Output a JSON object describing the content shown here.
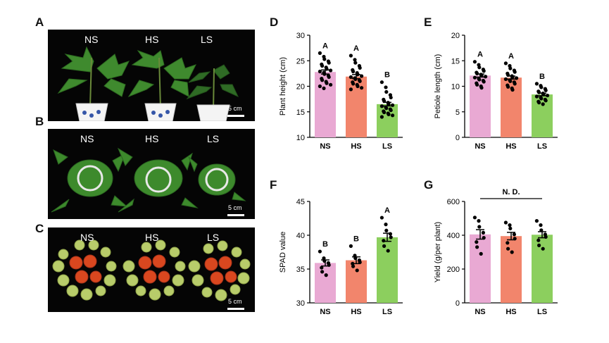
{
  "panel_labels": [
    "A",
    "B",
    "C",
    "D",
    "E",
    "F",
    "G"
  ],
  "photos": [
    {
      "id": "A",
      "treatments": [
        "NS",
        "HS",
        "LS"
      ],
      "scale_label": "5 cm"
    },
    {
      "id": "B",
      "treatments": [
        "NS",
        "HS",
        "LS"
      ],
      "scale_label": "5 cm"
    },
    {
      "id": "C",
      "treatments": [
        "NS",
        "HS",
        "LS"
      ],
      "scale_label": "5 cm"
    }
  ],
  "colors": {
    "NS": "#e9a9d3",
    "HS": "#f2856c",
    "LS": "#8ccf5e",
    "photo_bg": "#050505",
    "leaf": "#3f8a2e",
    "fruit_red": "#d9471f",
    "fruit_green": "#b8cc6a"
  },
  "chart_data": [
    {
      "id": "D",
      "type": "bar",
      "categories": [
        "NS",
        "HS",
        "LS"
      ],
      "values": [
        22.8,
        21.9,
        16.5
      ],
      "errors": [
        0.4,
        0.4,
        0.35
      ],
      "letters": [
        "A",
        "A",
        "B"
      ],
      "ylabel": "Plant height (cm)",
      "ylim": [
        10,
        30
      ],
      "yticks": [
        10,
        15,
        20,
        25,
        30
      ],
      "points": [
        [
          26.5,
          25.8,
          25.3,
          24.9,
          24.6,
          24.3,
          24.0,
          23.7,
          23.4,
          23.1,
          22.9,
          22.7,
          22.4,
          22.1,
          21.8,
          21.5,
          21.2,
          20.9,
          20.6,
          20.3,
          20.0,
          19.6
        ],
        [
          26.0,
          25.2,
          24.6,
          24.0,
          23.6,
          23.2,
          22.9,
          22.6,
          22.3,
          22.0,
          21.8,
          21.6,
          21.4,
          21.2,
          21.0,
          20.8,
          20.5,
          20.3,
          20.0,
          19.7,
          19.4
        ],
        [
          20.8,
          19.8,
          18.9,
          18.3,
          17.8,
          17.4,
          17.1,
          16.8,
          16.5,
          16.3,
          16.1,
          15.9,
          15.7,
          15.5,
          15.3,
          15.1,
          14.9,
          14.7,
          14.5,
          14.3,
          14.0
        ]
      ]
    },
    {
      "id": "E",
      "type": "bar",
      "categories": [
        "NS",
        "HS",
        "LS"
      ],
      "values": [
        12.1,
        11.7,
        8.4
      ],
      "errors": [
        0.3,
        0.3,
        0.25
      ],
      "letters": [
        "A",
        "A",
        "B"
      ],
      "ylabel": "Petiole length (cm)",
      "ylim": [
        0,
        20
      ],
      "yticks": [
        0,
        5,
        10,
        15,
        20
      ],
      "points": [
        [
          14.8,
          14.2,
          13.7,
          13.3,
          13.0,
          12.7,
          12.5,
          12.3,
          12.1,
          11.9,
          11.7,
          11.5,
          11.3,
          11.1,
          10.9,
          10.6,
          10.3,
          10.0,
          9.7
        ],
        [
          14.5,
          14.0,
          13.5,
          13.1,
          12.8,
          12.5,
          12.2,
          12.0,
          11.8,
          11.6,
          11.4,
          11.2,
          11.0,
          10.8,
          10.5,
          10.2,
          9.9,
          9.6,
          9.3
        ],
        [
          10.5,
          10.1,
          9.8,
          9.5,
          9.2,
          9.0,
          8.8,
          8.6,
          8.4,
          8.2,
          8.0,
          7.8,
          7.6,
          7.4,
          7.2,
          7.0,
          6.8,
          6.5
        ]
      ]
    },
    {
      "id": "F",
      "type": "bar",
      "categories": [
        "NS",
        "HS",
        "LS"
      ],
      "values": [
        35.9,
        36.3,
        39.7
      ],
      "errors": [
        0.45,
        0.5,
        0.6
      ],
      "letters": [
        "B",
        "B",
        "A"
      ],
      "ylabel": "SPAD value",
      "ylim": [
        30,
        45
      ],
      "yticks": [
        30,
        35,
        40,
        45
      ],
      "points": [
        [
          37.6,
          36.6,
          36.2,
          35.9,
          35.6,
          35.2,
          34.6,
          34.1
        ],
        [
          38.4,
          37.0,
          36.6,
          36.3,
          36.0,
          35.8,
          35.4,
          34.8
        ],
        [
          42.6,
          41.6,
          40.7,
          40.2,
          39.7,
          39.2,
          38.4,
          37.7
        ]
      ]
    },
    {
      "id": "G",
      "type": "bar",
      "categories": [
        "NS",
        "HS",
        "LS"
      ],
      "values": [
        405,
        395,
        403
      ],
      "errors": [
        28,
        22,
        18
      ],
      "letters": [],
      "bracket_label": "N. D.",
      "ylabel": "Yield (g/per plant)",
      "ylim": [
        0,
        600
      ],
      "yticks": [
        0,
        200,
        400,
        600
      ],
      "points": [
        [
          505,
          485,
          450,
          415,
          385,
          360,
          330,
          290
        ],
        [
          475,
          460,
          440,
          405,
          380,
          355,
          320,
          300
        ],
        [
          485,
          460,
          430,
          405,
          390,
          370,
          340,
          320
        ]
      ]
    }
  ]
}
